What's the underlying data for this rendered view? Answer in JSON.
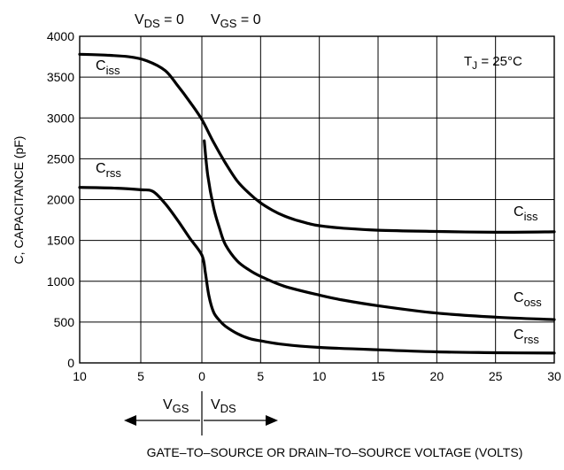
{
  "chart_data": {
    "type": "line",
    "title": "",
    "top_labels": {
      "vds": {
        "main": "V",
        "sub": "DS",
        "rest": " = 0"
      },
      "vgs": {
        "main": "V",
        "sub": "GS",
        "rest": " = 0"
      }
    },
    "tj_label": {
      "main": "T",
      "sub": "J",
      "rest": " = 25°C"
    },
    "ylabel": "C, CAPACITANCE (pF)",
    "xlabel": "GATE–TO–SOURCE OR DRAIN–TO–SOURCE VOLTAGE (VOLTS)",
    "direction_labels": {
      "left": {
        "main": "V",
        "sub": "GS"
      },
      "right": {
        "main": "V",
        "sub": "DS"
      }
    },
    "ylim": [
      0,
      4000
    ],
    "y_ticks": [
      0,
      500,
      1000,
      1500,
      2000,
      2500,
      3000,
      3500,
      4000
    ],
    "x_segments": [
      {
        "side": "gs",
        "range": [
          10,
          0
        ],
        "ticks": [
          10,
          5,
          0
        ]
      },
      {
        "side": "ds",
        "range": [
          0,
          30
        ],
        "ticks": [
          5,
          10,
          15,
          20,
          25,
          30
        ]
      }
    ],
    "grid": true,
    "series": [
      {
        "name": "Ciss",
        "label": {
          "main": "C",
          "sub": "iss"
        },
        "gs_points": [
          [
            10,
            3780
          ],
          [
            8,
            3770
          ],
          [
            6,
            3750
          ],
          [
            4.5,
            3700
          ],
          [
            3,
            3580
          ],
          [
            2,
            3400
          ],
          [
            1,
            3200
          ],
          [
            0,
            2980
          ]
        ],
        "ds_points": [
          [
            0,
            2980
          ],
          [
            1,
            2700
          ],
          [
            2,
            2450
          ],
          [
            3,
            2230
          ],
          [
            4,
            2080
          ],
          [
            5,
            1960
          ],
          [
            6,
            1870
          ],
          [
            7,
            1800
          ],
          [
            8,
            1750
          ],
          [
            9,
            1710
          ],
          [
            10,
            1680
          ],
          [
            12,
            1650
          ],
          [
            15,
            1625
          ],
          [
            20,
            1610
          ],
          [
            25,
            1600
          ],
          [
            30,
            1605
          ]
        ]
      },
      {
        "name": "Coss",
        "label": {
          "main": "C",
          "sub": "oss"
        },
        "gs_points": [],
        "ds_points": [
          [
            0.2,
            2720
          ],
          [
            0.5,
            2300
          ],
          [
            1,
            1900
          ],
          [
            1.5,
            1650
          ],
          [
            2,
            1450
          ],
          [
            3,
            1250
          ],
          [
            4,
            1140
          ],
          [
            5,
            1060
          ],
          [
            7,
            940
          ],
          [
            10,
            830
          ],
          [
            12,
            770
          ],
          [
            15,
            700
          ],
          [
            20,
            610
          ],
          [
            25,
            560
          ],
          [
            30,
            530
          ]
        ]
      },
      {
        "name": "Crss",
        "label": {
          "main": "C",
          "sub": "rss"
        },
        "gs_points": [
          [
            10,
            2150
          ],
          [
            7,
            2140
          ],
          [
            5,
            2120
          ],
          [
            4,
            2100
          ],
          [
            3,
            1950
          ],
          [
            2,
            1750
          ],
          [
            1,
            1530
          ],
          [
            0,
            1320
          ]
        ],
        "ds_points": [
          [
            0,
            1320
          ],
          [
            0.3,
            1100
          ],
          [
            0.6,
            820
          ],
          [
            1,
            620
          ],
          [
            1.5,
            520
          ],
          [
            2,
            450
          ],
          [
            3,
            360
          ],
          [
            4,
            300
          ],
          [
            5,
            270
          ],
          [
            7,
            225
          ],
          [
            10,
            190
          ],
          [
            15,
            160
          ],
          [
            20,
            135
          ],
          [
            25,
            125
          ],
          [
            30,
            120
          ]
        ]
      }
    ]
  }
}
